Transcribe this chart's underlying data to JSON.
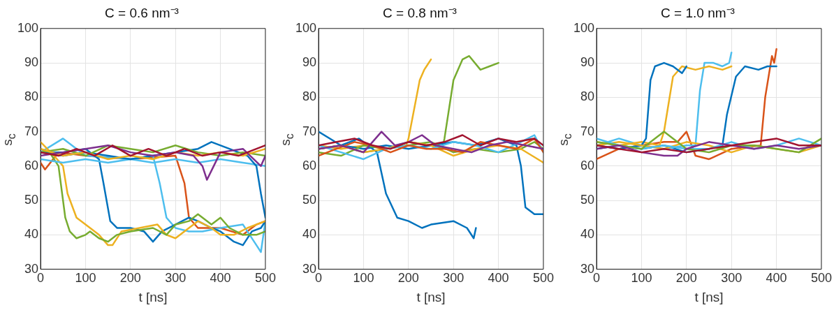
{
  "chart_data": [
    {
      "type": "line",
      "title": "C = 0.6 nm⁻³",
      "xlabel": "t [ns]",
      "ylabel": "s$_{c}$",
      "xlim": [
        0,
        500
      ],
      "ylim": [
        30,
        100
      ],
      "xticks": [
        0,
        100,
        200,
        300,
        400,
        500
      ],
      "yticks": [
        30,
        40,
        50,
        60,
        70,
        80,
        90,
        100
      ],
      "grid": true,
      "series": [
        {
          "color": "#a2142f",
          "x": [
            0,
            40,
            80,
            120,
            160,
            200,
            240,
            280,
            320,
            360,
            400,
            440,
            480,
            500
          ],
          "values": [
            64,
            63,
            65,
            63,
            66,
            63,
            65,
            63,
            65,
            63,
            64,
            63,
            65,
            66
          ]
        },
        {
          "color": "#7e2f8e",
          "x": [
            0,
            50,
            100,
            150,
            200,
            250,
            300,
            340,
            360,
            370,
            385,
            400,
            450,
            490,
            500
          ],
          "values": [
            63,
            64,
            65,
            66,
            64,
            63,
            64,
            63,
            60,
            56,
            60,
            64,
            65,
            60,
            63
          ]
        },
        {
          "color": "#edb120",
          "x": [
            0,
            50,
            100,
            150,
            200,
            250,
            300,
            350,
            400,
            450,
            500
          ],
          "values": [
            65,
            63,
            64,
            62,
            63,
            62,
            64,
            63,
            64,
            63,
            65
          ]
        },
        {
          "color": "#77ac30",
          "x": [
            0,
            50,
            100,
            150,
            200,
            250,
            300,
            350,
            400,
            450,
            500
          ],
          "values": [
            64,
            65,
            63,
            66,
            65,
            64,
            66,
            64,
            63,
            64,
            63
          ]
        },
        {
          "color": "#0072bd",
          "x": [
            0,
            50,
            100,
            150,
            200,
            250,
            300,
            350,
            380,
            420,
            460,
            480,
            490,
            500
          ],
          "values": [
            64,
            63,
            64,
            63,
            62,
            63,
            64,
            65,
            67,
            65,
            63,
            60,
            52,
            45
          ]
        },
        {
          "color": "#4dbeee",
          "x": [
            0,
            50,
            100,
            150,
            200,
            250,
            300,
            350,
            400,
            450,
            500
          ],
          "values": [
            62,
            61,
            62,
            61,
            62,
            61,
            62,
            61,
            62,
            61,
            60
          ]
        },
        {
          "color": "#77ac30",
          "x": [
            0,
            20,
            40,
            55,
            65,
            80,
            100,
            110,
            130,
            150,
            170,
            200,
            250,
            280,
            300,
            330,
            350,
            380,
            400,
            420,
            450,
            480,
            500
          ],
          "values": [
            65,
            64,
            60,
            45,
            41,
            39,
            40,
            41,
            39,
            38,
            40,
            41,
            42,
            40,
            43,
            44,
            46,
            43,
            45,
            42,
            40,
            40,
            41
          ]
        },
        {
          "color": "#edb120",
          "x": [
            0,
            30,
            50,
            60,
            80,
            100,
            130,
            150,
            160,
            180,
            220,
            260,
            280,
            300,
            330,
            350,
            380,
            400,
            430,
            460,
            500
          ],
          "values": [
            67,
            63,
            60,
            52,
            45,
            43,
            40,
            37,
            37,
            41,
            42,
            43,
            40,
            39,
            42,
            44,
            42,
            40,
            40,
            42,
            44
          ]
        },
        {
          "color": "#0072bd",
          "x": [
            0,
            50,
            100,
            130,
            140,
            155,
            170,
            200,
            230,
            250,
            270,
            300,
            330,
            350,
            380,
            400,
            430,
            450,
            470,
            490,
            500
          ],
          "values": [
            64,
            64,
            65,
            62,
            55,
            44,
            42,
            42,
            41,
            38,
            41,
            43,
            45,
            44,
            42,
            41,
            38,
            37,
            41,
            42,
            44
          ]
        },
        {
          "color": "#4dbeee",
          "x": [
            0,
            50,
            100,
            200,
            250,
            265,
            280,
            300,
            330,
            360,
            400,
            450,
            480,
            490,
            500
          ],
          "values": [
            64,
            68,
            63,
            62,
            63,
            55,
            45,
            42,
            41,
            41,
            42,
            43,
            37,
            35,
            44
          ]
        },
        {
          "color": "#d95319",
          "x": [
            0,
            10,
            40,
            100,
            200,
            300,
            320,
            330,
            350,
            400,
            450,
            480,
            500
          ],
          "values": [
            61,
            59,
            64,
            63,
            62,
            63,
            55,
            45,
            42,
            42,
            40,
            43,
            44
          ]
        }
      ]
    },
    {
      "type": "line",
      "title": "C = 0.8 nm⁻³",
      "xlabel": "t [ns]",
      "ylabel": "s$_{c}$",
      "xlim": [
        0,
        500
      ],
      "ylim": [
        30,
        100
      ],
      "xticks": [
        0,
        100,
        200,
        300,
        400,
        500
      ],
      "yticks": [
        30,
        40,
        50,
        60,
        70,
        80,
        90,
        100
      ],
      "grid": true,
      "series": [
        {
          "color": "#a2142f",
          "x": [
            0,
            40,
            80,
            120,
            160,
            200,
            240,
            280,
            320,
            360,
            400,
            440,
            480,
            500
          ],
          "values": [
            66,
            67,
            68,
            66,
            65,
            67,
            66,
            67,
            69,
            66,
            68,
            67,
            68,
            66
          ]
        },
        {
          "color": "#7e2f8e",
          "x": [
            0,
            50,
            100,
            140,
            170,
            200,
            230,
            260,
            300,
            340,
            380,
            420,
            460,
            500
          ],
          "values": [
            65,
            66,
            64,
            70,
            66,
            67,
            69,
            66,
            65,
            64,
            66,
            67,
            66,
            65
          ]
        },
        {
          "color": "#d95319",
          "x": [
            0,
            40,
            80,
            120,
            160,
            200,
            240,
            280,
            320,
            360,
            400,
            440,
            480,
            500
          ],
          "values": [
            63,
            65,
            67,
            66,
            64,
            66,
            65,
            65,
            64,
            67,
            66,
            65,
            68,
            64
          ]
        },
        {
          "color": "#4dbeee",
          "x": [
            0,
            50,
            100,
            150,
            200,
            250,
            300,
            350,
            400,
            450,
            480,
            500
          ],
          "values": [
            66,
            64,
            62,
            65,
            66,
            65,
            67,
            66,
            64,
            67,
            69,
            64
          ]
        },
        {
          "color": "#edb120",
          "x": [
            0,
            50,
            100,
            150,
            200,
            250,
            300,
            350,
            400,
            450,
            500
          ],
          "values": [
            65,
            66,
            64,
            65,
            67,
            66,
            63,
            65,
            66,
            65,
            61
          ]
        },
        {
          "color": "#77ac30",
          "x": [
            0,
            50,
            100,
            150,
            200,
            250,
            300,
            350,
            400,
            450,
            480,
            500
          ],
          "values": [
            64,
            63,
            66,
            65,
            66,
            67,
            64,
            65,
            64,
            65,
            67,
            65
          ]
        },
        {
          "color": "#0072bd",
          "x": [
            0,
            50,
            100,
            150,
            200,
            250,
            300,
            350,
            400,
            440,
            450,
            460,
            480,
            500
          ],
          "values": [
            65,
            66,
            65,
            66,
            65,
            66,
            67,
            66,
            68,
            66,
            60,
            48,
            46,
            46
          ]
        },
        {
          "color": "#0072bd",
          "x": [
            0,
            50,
            90,
            130,
            150,
            175,
            200,
            230,
            250,
            300,
            330,
            345,
            350
          ],
          "values": [
            70,
            66,
            68,
            64,
            52,
            45,
            44,
            42,
            43,
            44,
            42,
            39,
            42
          ]
        },
        {
          "color": "#edb120",
          "x": [
            0,
            50,
            100,
            150,
            195,
            200,
            225,
            235,
            240,
            250
          ],
          "values": [
            66,
            65,
            66,
            65,
            66,
            68,
            85,
            88,
            89,
            91
          ]
        },
        {
          "color": "#77ac30",
          "x": [
            0,
            50,
            100,
            150,
            200,
            250,
            275,
            280,
            300,
            320,
            335,
            360,
            380,
            400
          ],
          "values": [
            65,
            66,
            64,
            65,
            67,
            66,
            65,
            68,
            85,
            91,
            92,
            88,
            89,
            90
          ]
        }
      ]
    },
    {
      "type": "line",
      "title": "C = 1.0 nm⁻³",
      "xlabel": "t [ns]",
      "ylabel": "s$_{c}$",
      "xlim": [
        0,
        500
      ],
      "ylim": [
        30,
        100
      ],
      "xticks": [
        0,
        100,
        200,
        300,
        400,
        500
      ],
      "yticks": [
        30,
        40,
        50,
        60,
        70,
        80,
        90,
        100
      ],
      "grid": true,
      "series": [
        {
          "color": "#a2142f",
          "x": [
            0,
            50,
            100,
            150,
            200,
            250,
            300,
            350,
            400,
            450,
            500
          ],
          "values": [
            66,
            65,
            64,
            65,
            64,
            65,
            66,
            67,
            68,
            66,
            66
          ]
        },
        {
          "color": "#7e2f8e",
          "x": [
            0,
            50,
            100,
            150,
            180,
            200,
            250,
            300,
            350,
            400,
            450,
            500
          ],
          "values": [
            65,
            66,
            64,
            63,
            63,
            65,
            67,
            66,
            65,
            66,
            65,
            66
          ]
        },
        {
          "color": "#77ac30",
          "x": [
            0,
            50,
            100,
            150,
            200,
            250,
            300,
            350,
            400,
            450,
            500
          ],
          "values": [
            67,
            66,
            65,
            70,
            65,
            64,
            66,
            66,
            65,
            64,
            68
          ]
        },
        {
          "color": "#4dbeee",
          "x": [
            0,
            50,
            100,
            150,
            200,
            250,
            300,
            350,
            400,
            450,
            500
          ],
          "values": [
            68,
            66,
            65,
            66,
            65,
            65,
            67,
            65,
            66,
            68,
            66
          ]
        },
        {
          "color": "#edb120",
          "x": [
            0,
            50,
            100,
            150,
            200,
            250,
            300,
            350,
            400,
            450,
            500
          ],
          "values": [
            66,
            67,
            66,
            65,
            67,
            66,
            64,
            66,
            65,
            64,
            66
          ]
        },
        {
          "color": "#0072bd",
          "x": [
            0,
            50,
            100,
            110,
            120,
            130,
            150,
            170,
            190,
            200
          ],
          "values": [
            66,
            65,
            66,
            68,
            85,
            89,
            90,
            89,
            87,
            89
          ]
        },
        {
          "color": "#edb120",
          "x": [
            0,
            50,
            100,
            140,
            150,
            170,
            190,
            220,
            250,
            280,
            300
          ],
          "values": [
            67,
            66,
            67,
            66,
            70,
            86,
            89,
            88,
            89,
            88,
            89
          ]
        },
        {
          "color": "#4dbeee",
          "x": [
            0,
            50,
            100,
            150,
            200,
            220,
            230,
            240,
            260,
            280,
            295,
            300
          ],
          "values": [
            66,
            68,
            66,
            65,
            66,
            66,
            82,
            90,
            90,
            89,
            90,
            93
          ]
        },
        {
          "color": "#0072bd",
          "x": [
            0,
            50,
            100,
            150,
            200,
            250,
            280,
            290,
            310,
            330,
            360,
            380,
            400
          ],
          "values": [
            65,
            66,
            65,
            66,
            64,
            65,
            66,
            75,
            86,
            89,
            88,
            89,
            89
          ]
        },
        {
          "color": "#d95319",
          "x": [
            0,
            50,
            100,
            150,
            180,
            200,
            220,
            250,
            300,
            365,
            375,
            390,
            395,
            400
          ],
          "values": [
            62,
            65,
            66,
            67,
            67,
            70,
            63,
            62,
            65,
            66,
            80,
            92,
            90,
            94
          ]
        }
      ]
    }
  ]
}
